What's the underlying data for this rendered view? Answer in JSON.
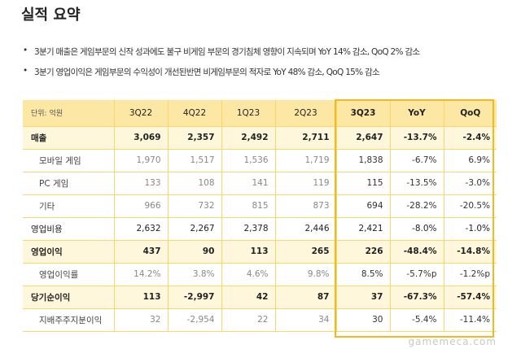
{
  "title": "실적 요약",
  "bullets": [
    "3분기 매출은 게임부문의 신작 성과에도 불구 비게임 부문의 경기침체 영향이 지속되며 YoY 14% 감소, QoQ 2% 감소",
    "3분기 영업이익은 게임부문의 수익성이 개선된반면 비게임부문의 적자로 YoY 48% 감소, QoQ 15% 감소"
  ],
  "table": {
    "headers": [
      "단위: 억원",
      "3Q22",
      "4Q22",
      "1Q23",
      "2Q23",
      "3Q23",
      "YoY",
      "QoQ"
    ],
    "rows": [
      {
        "type": "hl",
        "cells": [
          "매출",
          "3,069",
          "2,357",
          "2,492",
          "2,711",
          "2,647",
          "-13.7%",
          "-2.4%"
        ]
      },
      {
        "type": "sub",
        "cells": [
          "모바일 게임",
          "1,970",
          "1,517",
          "1,536",
          "1,719",
          "1,838",
          "-6.7%",
          "6.9%"
        ]
      },
      {
        "type": "sub",
        "cells": [
          "PC 게임",
          "133",
          "108",
          "141",
          "119",
          "115",
          "-13.5%",
          "-3.0%"
        ]
      },
      {
        "type": "sub",
        "cells": [
          "기타",
          "966",
          "732",
          "815",
          "873",
          "694",
          "-28.2%",
          "-20.5%"
        ]
      },
      {
        "type": "normal",
        "cells": [
          "영업비용",
          "2,632",
          "2,267",
          "2,378",
          "2,446",
          "2,421",
          "-8.0%",
          "-1.0%"
        ]
      },
      {
        "type": "hl",
        "cells": [
          "영업이익",
          "437",
          "90",
          "113",
          "265",
          "226",
          "-48.4%",
          "-14.8%"
        ]
      },
      {
        "type": "sub",
        "cells": [
          "영업이익률",
          "14.2%",
          "3.8%",
          "4.6%",
          "9.8%",
          "8.5%",
          "-5.7%p",
          "-1.2%p"
        ]
      },
      {
        "type": "hl",
        "cells": [
          "당기순이익",
          "113",
          "-2,997",
          "42",
          "87",
          "37",
          "-67.3%",
          "-57.4%"
        ]
      },
      {
        "type": "sub",
        "cells": [
          "지배주주지분이익",
          "32",
          "-2,954",
          "22",
          "34",
          "30",
          "-5.4%",
          "-11.4%"
        ]
      }
    ]
  },
  "watermark": "gamemeca.com",
  "colors": {
    "header_bg": "#fde7a4",
    "highlight_bg": "#fff7dc",
    "border": "#f8d76a",
    "focus_box": "#f5b81f"
  }
}
